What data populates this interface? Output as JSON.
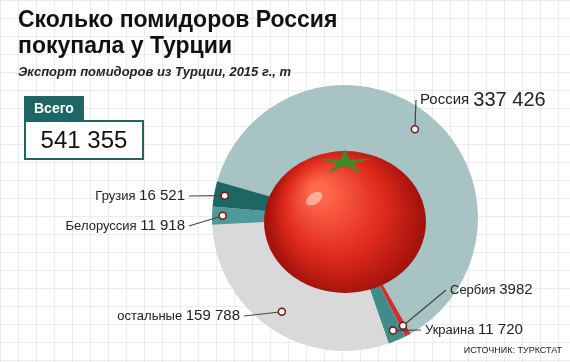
{
  "chart_data": {
    "type": "pie",
    "title": "Сколько помидоров Россия покупала у Турции",
    "subtitle": "Экспорт помидоров из Турции, 2015 г., т",
    "categories": [
      "Россия",
      "Сербия",
      "Украина",
      "остальные",
      "Белоруссия",
      "Грузия"
    ],
    "values": [
      337426,
      3982,
      11720,
      159788,
      11918,
      16521
    ],
    "value_labels": [
      "337 426",
      "3982",
      "11 720",
      "159 788",
      "11 918",
      "16 521"
    ],
    "colors": [
      "#a8c3c4",
      "#d0312d",
      "#3f8c8a",
      "#d9d9d9",
      "#4d9a98",
      "#1d6664"
    ],
    "data_labels": true,
    "total": {
      "label": "Всего",
      "value": 541355,
      "value_label": "541 355"
    },
    "source": "ИСТОЧНИК: ТУРКСТАТ"
  }
}
